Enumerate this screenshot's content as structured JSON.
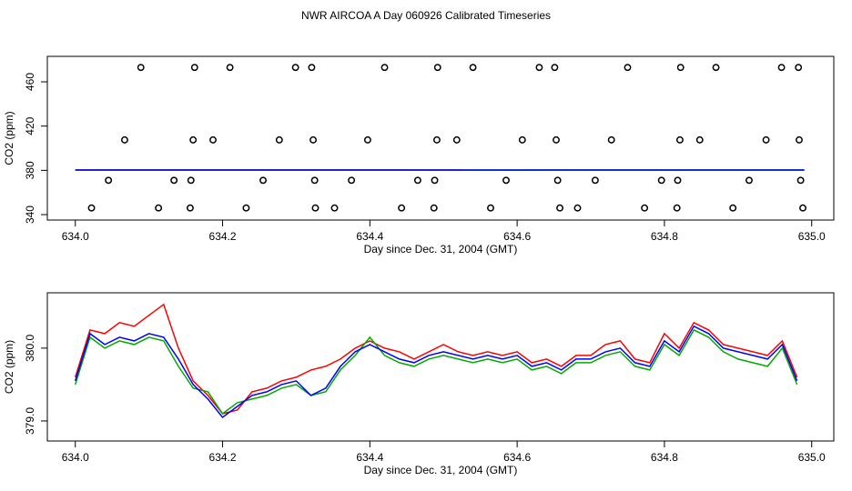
{
  "title": "NWR AIRCOA A  Day 060926  Calibrated Timeseries",
  "chart_data": [
    {
      "type": "scatter",
      "xlabel": "Day since Dec. 31, 2004 (GMT)",
      "ylabel": "CO2 (ppm)",
      "xlim": [
        633.962,
        635.03
      ],
      "ylim": [
        335.1,
        483
      ],
      "xticks": [
        {
          "value": 634,
          "label": "634.0"
        },
        634.2,
        634.4,
        634.6,
        634.8,
        {
          "value": 635,
          "label": "635.0"
        }
      ],
      "yticks": [
        340,
        380,
        420,
        460
      ],
      "series": [
        {
          "marker": "circle",
          "color": "#000000",
          "x": [
            634.089,
            634.162,
            634.21,
            634.299,
            634.321,
            634.42,
            634.492,
            634.54,
            634.63,
            634.651,
            634.75,
            634.822,
            634.87,
            634.959,
            634.982,
            634.067,
            634.16,
            634.187,
            634.277,
            634.323,
            634.397,
            634.491,
            634.518,
            634.607,
            634.653,
            634.728,
            634.821,
            634.848,
            634.938,
            634.983,
            634.045,
            634.134,
            634.157,
            634.255,
            634.325,
            634.375,
            634.465,
            634.488,
            634.585,
            634.655,
            634.706,
            634.796,
            634.818,
            634.915,
            634.985,
            634.022,
            634.113,
            634.156,
            634.232,
            634.326,
            634.352,
            634.443,
            634.487,
            634.564,
            634.658,
            634.682,
            634.773,
            634.817,
            634.893,
            634.988
          ],
          "values": [
            473,
            473,
            473,
            473,
            473,
            473,
            473,
            473,
            473,
            473,
            473,
            473,
            473,
            473,
            473,
            407.5,
            407.5,
            407.5,
            407.5,
            407.5,
            407.5,
            407.5,
            407.5,
            407.5,
            407.5,
            407.5,
            407.5,
            407.5,
            407.5,
            407.5,
            371,
            371,
            371,
            371,
            371,
            371,
            371,
            371,
            371,
            371,
            371,
            371,
            371,
            371,
            371,
            346,
            346,
            346,
            346,
            346,
            346,
            346,
            346,
            346,
            346,
            346,
            346,
            346,
            346,
            346
          ]
        },
        {
          "marker": "line",
          "color": "#ff0000",
          "x": [
            634.0,
            634.99
          ],
          "values": [
            380.4,
            380.3
          ]
        },
        {
          "marker": "line",
          "color": "#00aa00",
          "x": [
            634.0,
            634.99
          ],
          "values": [
            380.3,
            380.4
          ]
        },
        {
          "marker": "line",
          "color": "#0000ff",
          "x": [
            634.0,
            634.99
          ],
          "values": [
            380.3,
            380.3
          ]
        }
      ]
    },
    {
      "type": "line",
      "xlabel": "Day since Dec. 31, 2004 (GMT)",
      "ylabel": "CO2 (ppm)",
      "xlim": [
        633.962,
        635.03
      ],
      "ylim": [
        378.725,
        380.76
      ],
      "xticks": [
        {
          "value": 634,
          "label": "634.0"
        },
        634.2,
        634.4,
        634.6,
        634.8,
        {
          "value": 635,
          "label": "635.0"
        }
      ],
      "yticks": [
        {
          "value": 379,
          "label": "379.0"
        },
        {
          "value": 380,
          "label": "380.0"
        }
      ],
      "x": [
        634.0,
        634.02,
        634.04,
        634.06,
        634.08,
        634.1,
        634.12,
        634.14,
        634.16,
        634.18,
        634.2,
        634.22,
        634.24,
        634.26,
        634.28,
        634.3,
        634.32,
        634.34,
        634.36,
        634.38,
        634.4,
        634.42,
        634.44,
        634.46,
        634.48,
        634.5,
        634.52,
        634.54,
        634.56,
        634.58,
        634.6,
        634.62,
        634.64,
        634.66,
        634.68,
        634.7,
        634.72,
        634.74,
        634.76,
        634.78,
        634.8,
        634.82,
        634.84,
        634.86,
        634.88,
        634.9,
        634.92,
        634.94,
        634.96,
        634.98
      ],
      "series": [
        {
          "color": "#ff0000",
          "values": [
            379.6,
            380.25,
            380.2,
            380.35,
            380.3,
            380.45,
            380.6,
            380.0,
            379.55,
            379.35,
            379.1,
            379.15,
            379.4,
            379.45,
            379.55,
            379.6,
            379.7,
            379.75,
            379.85,
            380.0,
            380.1,
            380.0,
            379.95,
            379.85,
            379.95,
            380.05,
            379.95,
            379.9,
            379.95,
            379.9,
            379.95,
            379.8,
            379.85,
            379.75,
            379.9,
            379.9,
            380.05,
            380.1,
            379.85,
            379.8,
            380.2,
            380.0,
            380.35,
            380.25,
            380.05,
            380.0,
            379.95,
            379.9,
            380.1,
            379.6
          ]
        },
        {
          "color": "#00aa00",
          "values": [
            379.5,
            380.15,
            380.0,
            380.1,
            380.05,
            380.15,
            380.1,
            379.75,
            379.45,
            379.4,
            379.1,
            379.25,
            379.3,
            379.35,
            379.45,
            379.5,
            379.35,
            379.4,
            379.7,
            379.9,
            380.15,
            379.9,
            379.8,
            379.75,
            379.85,
            379.9,
            379.85,
            379.8,
            379.85,
            379.8,
            379.85,
            379.7,
            379.75,
            379.65,
            379.8,
            379.8,
            379.9,
            379.95,
            379.75,
            379.7,
            380.05,
            379.9,
            380.25,
            380.15,
            379.95,
            379.85,
            379.8,
            379.75,
            380.0,
            379.5
          ]
        },
        {
          "color": "#0000ff",
          "values": [
            379.55,
            380.2,
            380.05,
            380.15,
            380.1,
            380.2,
            380.15,
            379.85,
            379.5,
            379.3,
            379.05,
            379.2,
            379.35,
            379.4,
            379.5,
            379.55,
            379.35,
            379.45,
            379.75,
            379.95,
            380.05,
            379.95,
            379.85,
            379.8,
            379.9,
            379.95,
            379.9,
            379.85,
            379.9,
            379.85,
            379.9,
            379.75,
            379.8,
            379.7,
            379.85,
            379.85,
            379.95,
            380.0,
            379.8,
            379.75,
            380.1,
            379.95,
            380.3,
            380.2,
            380.0,
            379.95,
            379.9,
            379.85,
            380.05,
            379.55
          ]
        }
      ]
    }
  ]
}
